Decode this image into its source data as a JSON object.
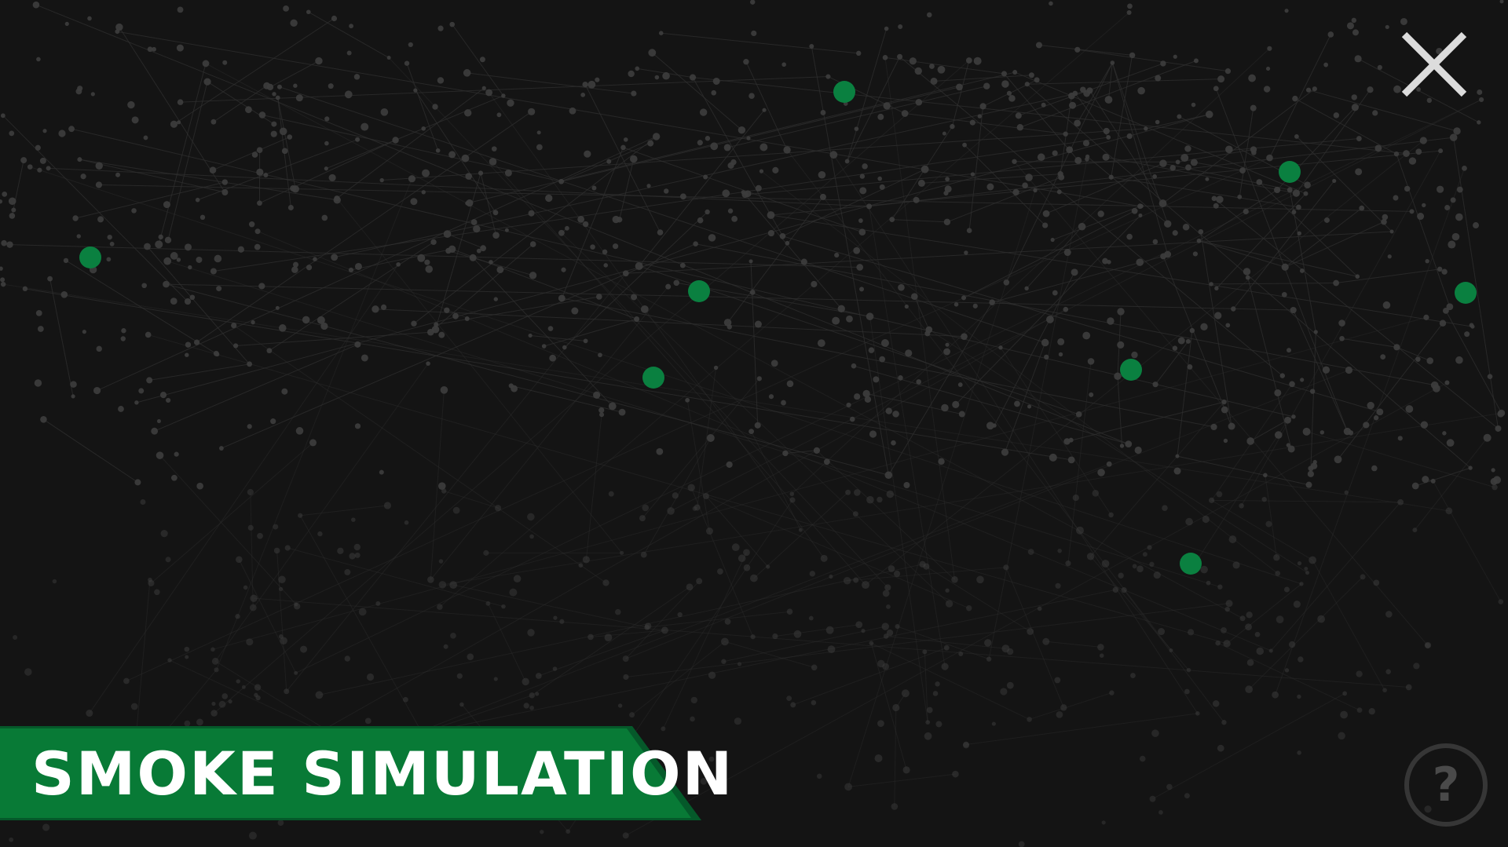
{
  "title": "Smoke Simulation",
  "close_button": {
    "icon": "close-icon"
  },
  "help_button": {
    "icon": "question-mark-icon",
    "label": "?"
  },
  "colors": {
    "background": "#141414",
    "node": "#3d3d3d",
    "edge": "#2f2f2f",
    "highlight_node": "#0a8040",
    "banner_green": "#087a36",
    "banner_shadow": "#05592a",
    "icon_light": "#dcdcdc",
    "icon_dark": "#363636"
  }
}
